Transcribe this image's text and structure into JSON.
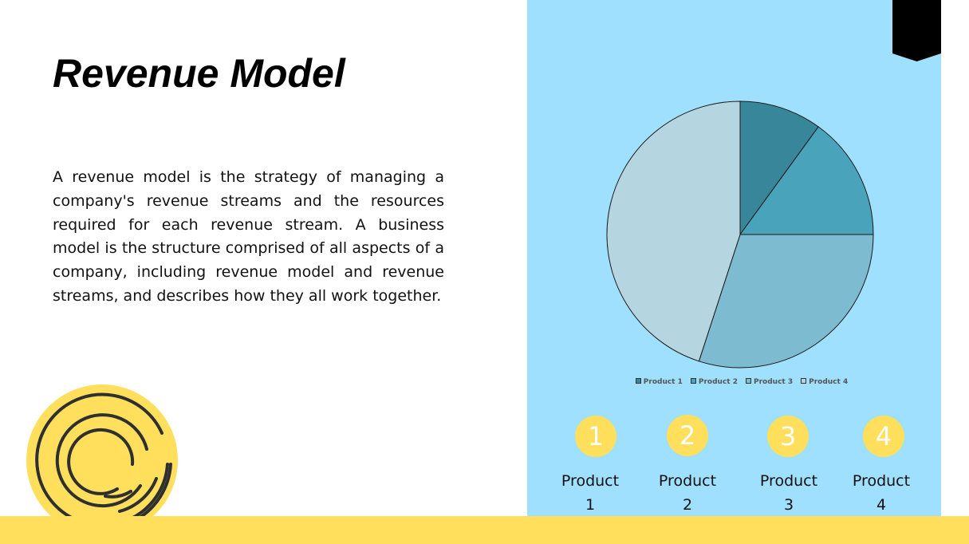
{
  "slide": {
    "title": "Revenue Model",
    "description": "A revenue model is the strategy of managing a company's revenue streams and the resources required for each revenue stream. A business model is the structure comprised of all aspects of a company, including revenue model and revenue streams, and describes how they all work together."
  },
  "colors": {
    "panel": "#9fe0ff",
    "accent_yellow": "#ffdf5c",
    "bookmark": "#000000"
  },
  "chart_data": {
    "type": "pie",
    "categories": [
      "Product 1",
      "Product 2",
      "Product 3",
      "Product 4"
    ],
    "values": [
      10,
      15,
      30,
      45
    ],
    "colors": [
      "#38869a",
      "#48a3bb",
      "#7dbbd0",
      "#b5d5e0"
    ],
    "title": "",
    "legend_position": "bottom"
  },
  "products": [
    {
      "number": "1",
      "label": "Product",
      "sub": "1"
    },
    {
      "number": "2",
      "label": "Product",
      "sub": "2"
    },
    {
      "number": "3",
      "label": "Product",
      "sub": "3"
    },
    {
      "number": "4",
      "label": "Product",
      "sub": "4"
    }
  ]
}
